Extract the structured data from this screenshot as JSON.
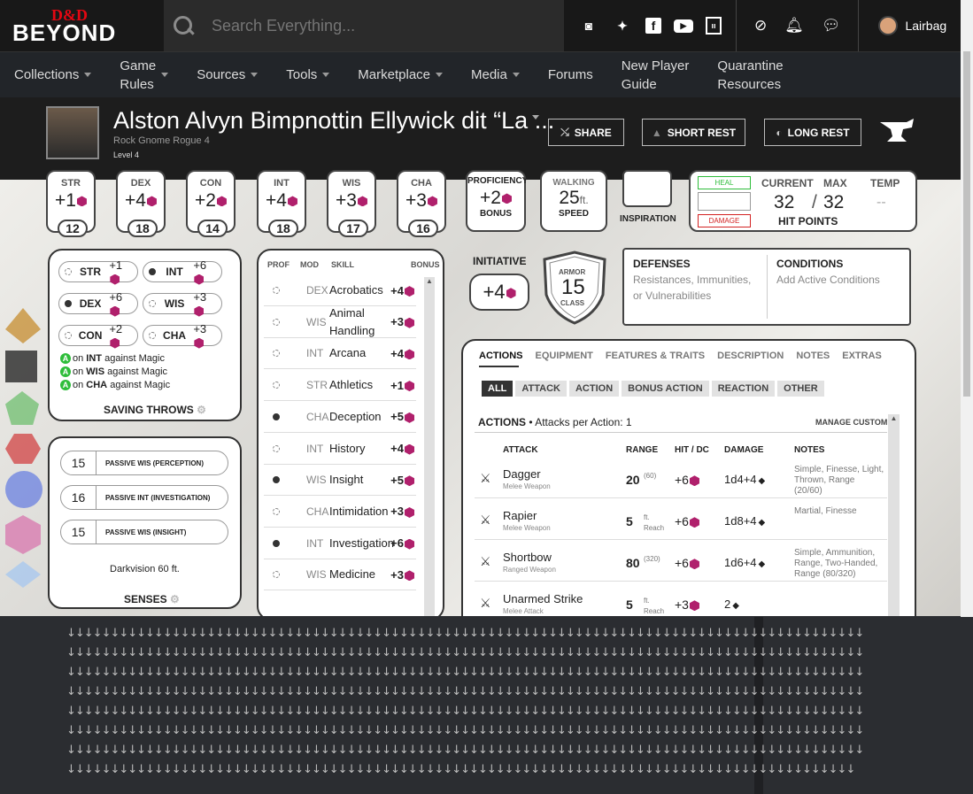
{
  "topbar": {
    "logo_top": "D&D",
    "logo_bottom": "BEYOND",
    "search_placeholder": "Search Everything...",
    "user": "Lairbag"
  },
  "nav": [
    {
      "label": "Collections",
      "caret": true
    },
    {
      "label": "Game\nRules",
      "caret": true
    },
    {
      "label": "Sources",
      "caret": true
    },
    {
      "label": "Tools",
      "caret": true
    },
    {
      "label": "Marketplace",
      "caret": true
    },
    {
      "label": "Media",
      "caret": true
    },
    {
      "label": "Forums",
      "caret": false
    },
    {
      "label": "New Player\nGuide",
      "caret": false
    },
    {
      "label": "Quarantine\nResources",
      "caret": false
    }
  ],
  "character": {
    "name": "Alston Alvyn Bimpnottin Ellywick dit “La ...",
    "race_class": "Rock Gnome  Rogue 4",
    "level": "Level 4",
    "share": "SHARE",
    "short_rest": "SHORT REST",
    "long_rest": "LONG REST"
  },
  "abilities": [
    {
      "abbr": "STR",
      "mod": "+1",
      "score": "12"
    },
    {
      "abbr": "DEX",
      "mod": "+4",
      "score": "18"
    },
    {
      "abbr": "CON",
      "mod": "+2",
      "score": "14"
    },
    {
      "abbr": "INT",
      "mod": "+4",
      "score": "18"
    },
    {
      "abbr": "WIS",
      "mod": "+3",
      "score": "17"
    },
    {
      "abbr": "CHA",
      "mod": "+3",
      "score": "16"
    }
  ],
  "proficiency": {
    "title": "PROFICIENCY",
    "value": "+2",
    "label": "BONUS"
  },
  "speed": {
    "title": "WALKING",
    "value": "25",
    "unit": "ft.",
    "label": "SPEED"
  },
  "inspiration": {
    "label": "INSPIRATION"
  },
  "hp": {
    "heal": "HEAL",
    "damage": "DAMAGE",
    "current_label": "CURRENT",
    "max_label": "MAX",
    "temp_label": "TEMP",
    "current": "32",
    "max": "32",
    "temp": "--",
    "title": "HIT POINTS"
  },
  "saves": [
    {
      "abbr": "STR",
      "mod": "+1",
      "prof": false
    },
    {
      "abbr": "INT",
      "mod": "+6",
      "prof": true
    },
    {
      "abbr": "DEX",
      "mod": "+6",
      "prof": true
    },
    {
      "abbr": "WIS",
      "mod": "+3",
      "prof": false
    },
    {
      "abbr": "CON",
      "mod": "+2",
      "prof": false
    },
    {
      "abbr": "CHA",
      "mod": "+3",
      "prof": false
    }
  ],
  "advantages": [
    {
      "ability": "INT",
      "text": "against Magic"
    },
    {
      "ability": "WIS",
      "text": "against Magic"
    },
    {
      "ability": "CHA",
      "text": "against Magic"
    }
  ],
  "saving_throws_title": "SAVING THROWS",
  "senses": {
    "items": [
      {
        "value": "15",
        "label": "PASSIVE WIS (PERCEPTION)"
      },
      {
        "value": "16",
        "label": "PASSIVE INT (INVESTIGATION)"
      },
      {
        "value": "15",
        "label": "PASSIVE WIS (INSIGHT)"
      }
    ],
    "darkvision": "Darkvision 60 ft.",
    "title": "SENSES"
  },
  "skills_header": {
    "prof": "PROF",
    "mod": "MOD",
    "skill": "SKILL",
    "bonus": "BONUS"
  },
  "skills": [
    {
      "mod": "DEX",
      "name": "Acrobatics",
      "bonus": "+4",
      "prof": false
    },
    {
      "mod": "WIS",
      "name": "Animal\nHandling",
      "bonus": "+3",
      "prof": false
    },
    {
      "mod": "INT",
      "name": "Arcana",
      "bonus": "+4",
      "prof": false
    },
    {
      "mod": "STR",
      "name": "Athletics",
      "bonus": "+1",
      "prof": false
    },
    {
      "mod": "CHA",
      "name": "Deception",
      "bonus": "+5",
      "prof": true
    },
    {
      "mod": "INT",
      "name": "History",
      "bonus": "+4",
      "prof": false
    },
    {
      "mod": "WIS",
      "name": "Insight",
      "bonus": "+5",
      "prof": true
    },
    {
      "mod": "CHA",
      "name": "Intimidation",
      "bonus": "+3",
      "prof": false
    },
    {
      "mod": "INT",
      "name": "Investigation",
      "bonus": "+6",
      "prof": true
    },
    {
      "mod": "WIS",
      "name": "Medicine",
      "bonus": "+3",
      "prof": false
    }
  ],
  "initiative": {
    "title": "INITIATIVE",
    "value": "+4"
  },
  "armor": {
    "top": "ARMOR",
    "value": "15",
    "bottom": "CLASS"
  },
  "defenses": {
    "title": "DEFENSES",
    "text": "Resistances, Immunities, or Vulnerabilities"
  },
  "conditions": {
    "title": "CONDITIONS",
    "text": "Add Active Conditions"
  },
  "action_tabs": [
    "ACTIONS",
    "EQUIPMENT",
    "FEATURES & TRAITS",
    "DESCRIPTION",
    "NOTES",
    "EXTRAS"
  ],
  "action_filters": [
    "ALL",
    "ATTACK",
    "ACTION",
    "BONUS ACTION",
    "REACTION",
    "OTHER"
  ],
  "actions_heading": {
    "title": "ACTIONS",
    "sub": "• Attacks per Action: 1",
    "manage": "MANAGE CUSTOM"
  },
  "attack_cols": {
    "attack": "ATTACK",
    "range": "RANGE",
    "hit": "HIT / DC",
    "damage": "DAMAGE",
    "notes": "NOTES"
  },
  "attacks": [
    {
      "name": "Dagger",
      "type": "Melee Weapon",
      "range": "20",
      "range2": "(60)",
      "hit": "+6",
      "damage": "1d4+4",
      "notes": "Simple, Finesse, Light, Thrown, Range (20/60)"
    },
    {
      "name": "Rapier",
      "type": "Melee Weapon",
      "range": "5",
      "range2": "ft. Reach",
      "hit": "+6",
      "damage": "1d8+4",
      "notes": "Martial, Finesse"
    },
    {
      "name": "Shortbow",
      "type": "Ranged Weapon",
      "range": "80",
      "range2": "(320)",
      "hit": "+6",
      "damage": "1d6+4",
      "notes": "Simple, Ammunition, Range, Two-Handed, Range (80/320)"
    },
    {
      "name": "Unarmed Strike",
      "type": "Melee Attack",
      "range": "5",
      "range2": "ft. Reach",
      "hit": "+3",
      "damage": "2",
      "notes": ""
    }
  ],
  "colors": {
    "header": "#181818",
    "nav": "#222529",
    "gem": "#b0206c",
    "heal": "#2ebd3a",
    "damage": "#d32222"
  }
}
